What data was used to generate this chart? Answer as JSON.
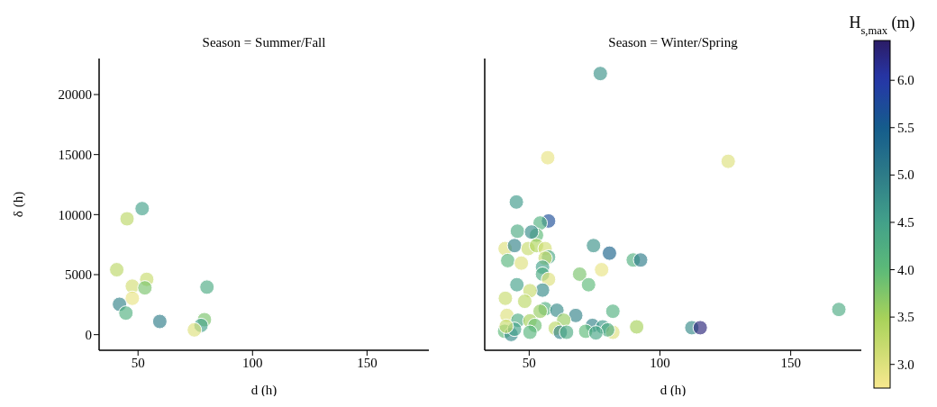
{
  "chart_data": [
    {
      "type": "scatter",
      "title": "Season = Summer/Fall",
      "xlabel": "d (h)",
      "ylabel": "δ (h)",
      "marker": "circle",
      "xlim": [
        33,
        177
      ],
      "xticks": [
        50,
        100,
        150
      ],
      "ylim": [
        -1300,
        23000
      ],
      "yticks": [
        0,
        5000,
        10000,
        15000,
        20000
      ],
      "x": [
        51.8,
        45.2,
        40.7,
        47.5,
        53.8,
        53,
        47.5,
        80.1,
        41.9,
        44.7,
        59.5,
        79.0,
        77.5,
        74.6
      ],
      "values": [
        10500,
        9650,
        5410,
        4040,
        4610,
        3900,
        3030,
        3960,
        2530,
        1800,
        1100,
        1250,
        770,
        400
      ],
      "colors": [
        "#43a18a",
        "#bcd767",
        "#bcd767",
        "#d2dd75",
        "#c7db6e",
        "#7ac36c",
        "#e8e484",
        "#4dab83",
        "#328288",
        "#52b07f",
        "#2e7c88",
        "#7ac36c",
        "#43a18a",
        "#dde17c"
      ]
    },
    {
      "type": "scatter",
      "title": "Season = Winter/Spring",
      "xlabel": "d (h)",
      "marker": "circle",
      "xlim": [
        33,
        177
      ],
      "xticks": [
        50,
        100,
        150
      ],
      "ylim": [
        -1300,
        23000
      ],
      "yticks": [
        0,
        5000,
        10000,
        15000,
        20000
      ],
      "tick_labels": "x",
      "clabel": "H$_{s,max}$ (m)",
      "clim": [
        2.75,
        6.42
      ],
      "cticks": [
        {
          "value": 3,
          "label": "3.0"
        },
        3.5,
        {
          "value": 4,
          "label": "4.0"
        },
        4.5,
        {
          "value": 5,
          "label": "5.0"
        },
        5.5,
        {
          "value": 6,
          "label": "6.0"
        }
      ],
      "x": [
        77.2,
        57.1,
        126.1,
        45.1,
        57.4,
        54.2,
        45.5,
        52.8,
        50.9,
        74.6,
        80.7,
        40.8,
        44.4,
        49.6,
        52.8,
        56.1,
        57.4,
        56.1,
        41.8,
        47.0,
        89.8,
        92.6,
        77.7,
        69.3,
        55.1,
        55.1,
        57.4,
        72.7,
        45.3,
        55.1,
        50.3,
        40.9,
        48.3,
        56.1,
        60.6,
        54.2,
        67.8,
        82.0,
        41.5,
        45.7,
        50.3,
        52.2,
        63.2,
        91.1,
        112.2,
        115.4,
        168.4,
        74.2,
        78.1,
        82.0,
        80.0,
        71.6,
        75.5,
        60.0,
        61.9,
        64.3,
        40.6,
        43.1,
        44.4,
        50.3,
        41.2
      ],
      "values": [
        21750,
        14740,
        14440,
        11050,
        9470,
        9300,
        8620,
        8290,
        8550,
        7420,
        6790,
        7170,
        7420,
        7170,
        7420,
        7170,
        6470,
        6370,
        6170,
        5960,
        6220,
        6220,
        5410,
        5040,
        5620,
        5040,
        4610,
        4160,
        4160,
        3710,
        3660,
        3030,
        2780,
        2160,
        2030,
        1950,
        1600,
        1950,
        1600,
        1200,
        1150,
        770,
        1200,
        650,
        580,
        580,
        2100,
        770,
        650,
        200,
        400,
        280,
        150,
        530,
        200,
        200,
        280,
        20,
        450,
        200,
        700
      ],
      "cvalues": [
        4.7,
        2.9,
        3.0,
        4.6,
        5.7,
        4.2,
        4.3,
        4.0,
        4.8,
        4.7,
        5.4,
        3.0,
        4.9,
        3.2,
        3.4,
        3.1,
        4.4,
        3.2,
        4.1,
        3.0,
        4.2,
        5.0,
        2.9,
        3.8,
        4.5,
        4.3,
        3.0,
        4.0,
        4.5,
        4.8,
        3.2,
        3.2,
        3.3,
        4.2,
        4.8,
        3.6,
        4.9,
        4.2,
        3.0,
        4.3,
        3.5,
        3.9,
        3.6,
        3.5,
        4.8,
        6.3,
        4.3,
        4.9,
        4.6,
        3.0,
        4.3,
        4.0,
        4.4,
        3.3,
        4.9,
        4.3,
        4.0,
        4.8,
        4.5,
        4.1,
        3.2
      ]
    }
  ]
}
